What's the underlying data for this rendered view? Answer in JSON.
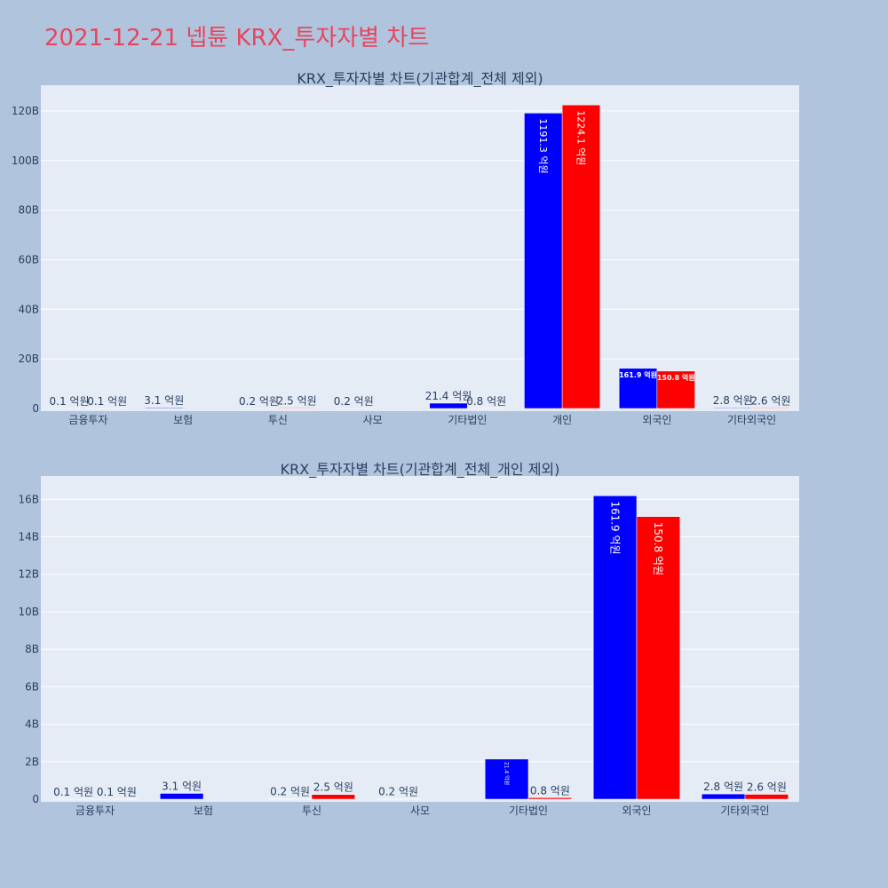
{
  "title": "2021-12-21 넵튠 KRX_투자자별 차트",
  "colors": {
    "background": "#b0c4de",
    "plot_bg": "#e5ecf6",
    "title": "#e8455d",
    "series1": "#0000ff",
    "series2": "#ff0000"
  },
  "chart_data": [
    {
      "type": "bar",
      "title": "KRX_투자자별 차트(기관합계_전체 제외)",
      "categories": [
        "금융투자",
        "보험",
        "투신",
        "사모",
        "기타법인",
        "개인",
        "외국인",
        "기타외국인"
      ],
      "series": [
        {
          "values": [
            0.01,
            0.31,
            0.02,
            0.02,
            2.14,
            119.13,
            16.19,
            0.28
          ],
          "labels": [
            "0.1 억원",
            "3.1 억원",
            "0.2 억원",
            "0.2 억원",
            "21.4 억원",
            "1191.3 억원",
            "161.9 억원",
            "2.8 억원"
          ]
        },
        {
          "values": [
            0.01,
            0,
            0.25,
            0,
            0.08,
            122.41,
            15.08,
            0.26
          ],
          "labels": [
            "0.1 억원",
            "",
            "2.5 억원",
            "",
            "0.8 억원",
            "1224.1 억원",
            "150.8 억원",
            "2.6 억원"
          ]
        }
      ],
      "ylim": [
        0,
        130
      ],
      "yticks": [
        0,
        20,
        40,
        60,
        80,
        100,
        120
      ],
      "ytick_labels": [
        "0",
        "20B",
        "40B",
        "60B",
        "80B",
        "100B",
        "120B"
      ]
    },
    {
      "type": "bar",
      "title": "KRX_투자자별 차트(기관합계_전체_개인 제외)",
      "categories": [
        "금융투자",
        "보험",
        "투신",
        "사모",
        "기타법인",
        "외국인",
        "기타외국인"
      ],
      "series": [
        {
          "values": [
            0.01,
            0.31,
            0.02,
            0.02,
            2.14,
            16.19,
            0.28
          ],
          "labels": [
            "0.1 억원",
            "3.1 억원",
            "0.2 억원",
            "0.2 억원",
            "21.4 억원",
            "161.9 억원",
            "2.8 억원"
          ]
        },
        {
          "values": [
            0.01,
            0,
            0.25,
            0,
            0.08,
            15.08,
            0.26
          ],
          "labels": [
            "0.1 억원",
            "",
            "2.5 억원",
            "",
            "0.8 억원",
            "150.8 억원",
            "2.6 억원"
          ]
        }
      ],
      "ylim": [
        0,
        17.2
      ],
      "yticks": [
        0,
        2,
        4,
        6,
        8,
        10,
        12,
        14,
        16
      ],
      "ytick_labels": [
        "0",
        "2B",
        "4B",
        "6B",
        "8B",
        "10B",
        "12B",
        "14B",
        "16B"
      ]
    }
  ]
}
